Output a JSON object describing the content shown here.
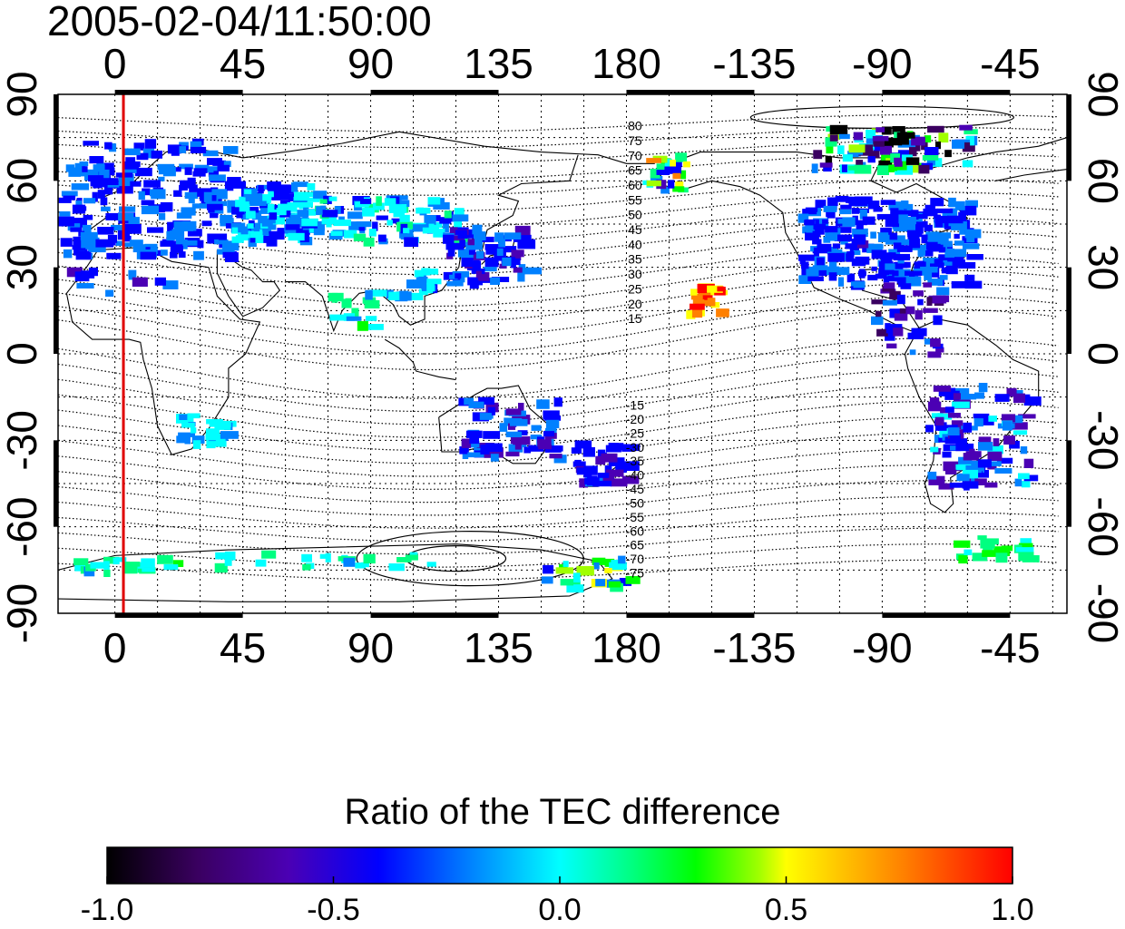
{
  "title": "2005-02-04/11:50:00",
  "map": {
    "x_ticks": [
      "0",
      "45",
      "90",
      "135",
      "180",
      "-135",
      "-90",
      "-45"
    ],
    "y_ticks": [
      "90",
      "60",
      "30",
      "0",
      "-30",
      "-60",
      "-90"
    ],
    "y_ticks_right": [
      "90",
      "60",
      "30",
      "0",
      "-30",
      "-60",
      "-90"
    ],
    "longitude_range": [
      -20,
      335
    ],
    "latitude_range": [
      -90,
      90
    ],
    "highlight_longitude": 3,
    "highlight_color": "#e00000",
    "contour_labels": [
      "80",
      "75",
      "70",
      "65",
      "60",
      "55",
      "50",
      "45",
      "40",
      "35",
      "30",
      "25",
      "20",
      "15",
      "-15",
      "-20",
      "-25",
      "-30",
      "-35",
      "-40",
      "-45",
      "-50",
      "-55",
      "-60",
      "-65",
      "-70",
      "-75"
    ]
  },
  "colorbar": {
    "title": "Ratio of the TEC difference",
    "ticks": [
      "-1.0",
      "-0.5",
      "0.0",
      "0.5",
      "1.0"
    ],
    "range": [
      -1.0,
      1.0
    ],
    "colormap": [
      "#000000",
      "#3a0060",
      "#4b00b4",
      "#0000ff",
      "#0080ff",
      "#00ffff",
      "#00ff80",
      "#00ff00",
      "#a0ff00",
      "#ffff00",
      "#ff8000",
      "#ff0000"
    ]
  }
}
